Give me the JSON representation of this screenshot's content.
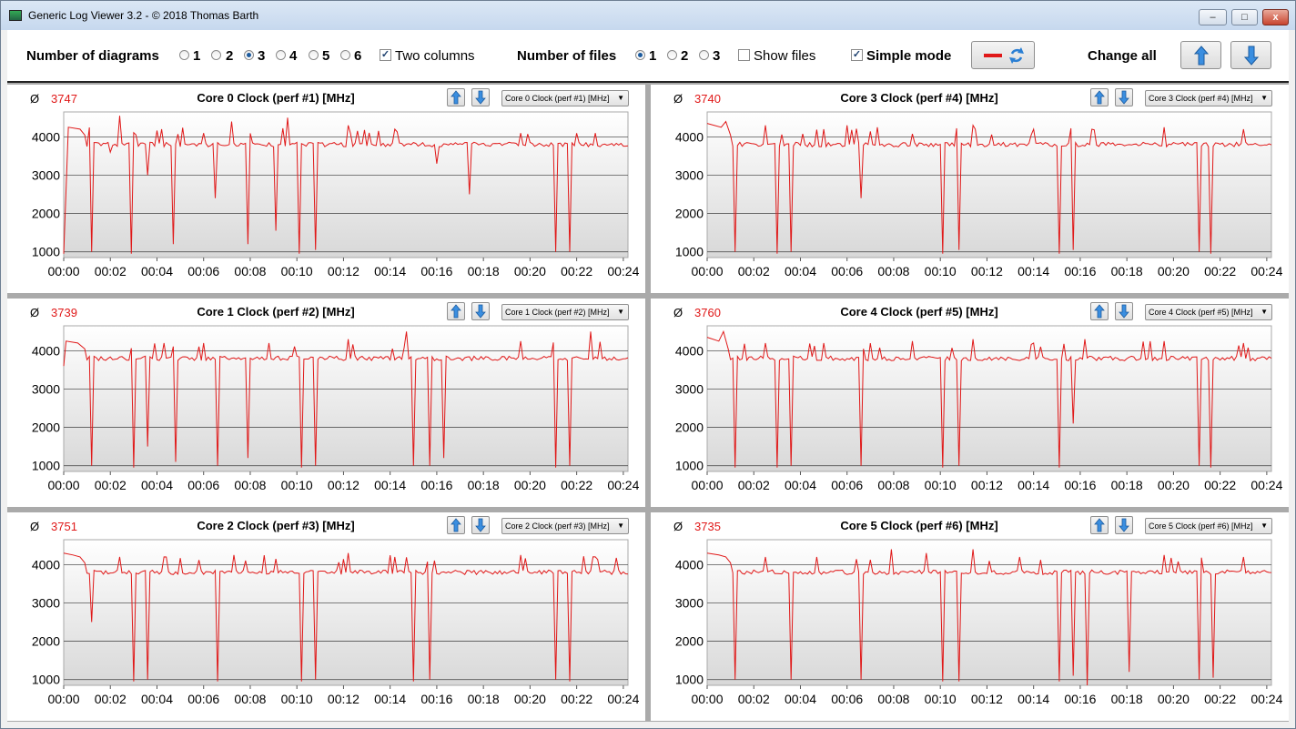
{
  "window": {
    "title": "Generic Log Viewer 3.2 - © 2018 Thomas Barth",
    "minimize": "–",
    "maximize": "□",
    "close": "x"
  },
  "toolbar": {
    "diagrams_label": "Number of diagrams",
    "diagram_options": [
      "1",
      "2",
      "3",
      "4",
      "5",
      "6"
    ],
    "diagram_selected": "3",
    "two_columns_label": "Two columns",
    "two_columns_checked": true,
    "files_label": "Number of files",
    "file_options": [
      "1",
      "2",
      "3"
    ],
    "file_selected": "1",
    "show_files_label": "Show files",
    "show_files_checked": false,
    "simple_mode_label": "Simple mode",
    "simple_mode_checked": true,
    "change_all_label": "Change all",
    "line_color": "#e01818",
    "check_mark": "✓"
  },
  "icons": {
    "refresh": "refresh-icon",
    "up": "arrow-up-icon",
    "down": "arrow-down-icon",
    "dropdown": "▼"
  },
  "panels": [
    {
      "avg_symbol": "Ø",
      "avg": "3747",
      "title": "Core 0 Clock (perf #1) [MHz]",
      "selector": "Core 0 Clock (perf #1) [MHz]"
    },
    {
      "avg_symbol": "Ø",
      "avg": "3740",
      "title": "Core 3 Clock (perf #4) [MHz]",
      "selector": "Core 3 Clock (perf #4) [MHz]"
    },
    {
      "avg_symbol": "Ø",
      "avg": "3739",
      "title": "Core 1 Clock (perf #2) [MHz]",
      "selector": "Core 1 Clock (perf #2) [MHz]"
    },
    {
      "avg_symbol": "Ø",
      "avg": "3760",
      "title": "Core 4 Clock (perf #5) [MHz]",
      "selector": "Core 4 Clock (perf #5) [MHz]"
    },
    {
      "avg_symbol": "Ø",
      "avg": "3751",
      "title": "Core 2 Clock (perf #3) [MHz]",
      "selector": "Core 2 Clock (perf #3) [MHz]"
    },
    {
      "avg_symbol": "Ø",
      "avg": "3735",
      "title": "Core 5 Clock (perf #6) [MHz]",
      "selector": "Core 5 Clock (perf #6) [MHz]"
    }
  ],
  "chart_data": [
    {
      "type": "line",
      "title": "Core 0 Clock (perf #1) [MHz]",
      "ylim": [
        850,
        4650
      ],
      "yticks": [
        1000,
        2000,
        3000,
        4000
      ],
      "xlim": [
        0,
        24.2
      ],
      "xticks": [
        "00:00",
        "00:02",
        "00:04",
        "00:06",
        "00:08",
        "00:10",
        "00:12",
        "00:14",
        "00:16",
        "00:18",
        "00:20",
        "00:22",
        "00:24"
      ],
      "grid": true,
      "color": "#e01818",
      "series": [
        {
          "baseline": 3800,
          "start": [
            [
              0,
              950
            ],
            [
              0.2,
              4250
            ],
            [
              0.7,
              4200
            ],
            [
              0.9,
              4050
            ]
          ],
          "spikes": [
            [
              1.2,
              1000
            ],
            [
              2.4,
              4550
            ],
            [
              2.9,
              950
            ],
            [
              3.6,
              3000
            ],
            [
              4.7,
              1200
            ],
            [
              6.5,
              2400
            ],
            [
              7.9,
              1200
            ],
            [
              9.1,
              1550
            ],
            [
              10.1,
              950
            ],
            [
              10.8,
              1050
            ],
            [
              17.4,
              2500
            ],
            [
              21.1,
              1000
            ],
            [
              21.7,
              1000
            ],
            [
              2.0,
              3600
            ],
            [
              4.2,
              4200
            ],
            [
              6.0,
              4100
            ],
            [
              7.2,
              4400
            ],
            [
              9.6,
              4500
            ],
            [
              12.2,
              4300
            ],
            [
              14.2,
              4200
            ],
            [
              16.0,
              3300
            ],
            [
              19.6,
              4100
            ],
            [
              22.8,
              4100
            ]
          ]
        }
      ]
    },
    {
      "type": "line",
      "title": "Core 3 Clock (perf #4) [MHz]",
      "ylim": [
        850,
        4650
      ],
      "yticks": [
        1000,
        2000,
        3000,
        4000
      ],
      "xlim": [
        0,
        24.2
      ],
      "xticks": [
        "00:00",
        "00:02",
        "00:04",
        "00:06",
        "00:08",
        "00:10",
        "00:12",
        "00:14",
        "00:16",
        "00:18",
        "00:20",
        "00:22",
        "00:24"
      ],
      "grid": true,
      "color": "#e01818",
      "series": [
        {
          "baseline": 3800,
          "start": [
            [
              0,
              4350
            ],
            [
              0.6,
              4250
            ],
            [
              0.8,
              4400
            ],
            [
              1.0,
              4050
            ]
          ],
          "spikes": [
            [
              1.2,
              1000
            ],
            [
              3.0,
              950
            ],
            [
              3.6,
              1000
            ],
            [
              6.6,
              2400
            ],
            [
              10.1,
              950
            ],
            [
              10.8,
              1050
            ],
            [
              15.1,
              950
            ],
            [
              15.7,
              1050
            ],
            [
              21.1,
              1000
            ],
            [
              21.6,
              950
            ],
            [
              2.5,
              4300
            ],
            [
              5.0,
              4200
            ],
            [
              6.0,
              4300
            ],
            [
              7.3,
              4250
            ],
            [
              11.4,
              4300
            ],
            [
              14.0,
              4200
            ],
            [
              19.6,
              4250
            ],
            [
              23.0,
              4200
            ]
          ]
        }
      ]
    },
    {
      "type": "line",
      "title": "Core 1 Clock (perf #2) [MHz]",
      "ylim": [
        850,
        4650
      ],
      "yticks": [
        1000,
        2000,
        3000,
        4000
      ],
      "xlim": [
        0,
        24.2
      ],
      "xticks": [
        "00:00",
        "00:02",
        "00:04",
        "00:06",
        "00:08",
        "00:10",
        "00:12",
        "00:14",
        "00:16",
        "00:18",
        "00:20",
        "00:22",
        "00:24"
      ],
      "grid": true,
      "color": "#e01818",
      "series": [
        {
          "baseline": 3800,
          "start": [
            [
              0,
              3600
            ],
            [
              0.1,
              4250
            ],
            [
              0.6,
              4200
            ],
            [
              0.9,
              4050
            ]
          ],
          "spikes": [
            [
              1.2,
              1000
            ],
            [
              3.0,
              950
            ],
            [
              3.6,
              1500
            ],
            [
              4.8,
              1100
            ],
            [
              6.6,
              1000
            ],
            [
              7.9,
              1200
            ],
            [
              10.2,
              950
            ],
            [
              10.8,
              1000
            ],
            [
              15.0,
              1000
            ],
            [
              15.7,
              1000
            ],
            [
              16.3,
              1200
            ],
            [
              21.1,
              950
            ],
            [
              21.7,
              1000
            ],
            [
              14.7,
              4500
            ],
            [
              22.6,
              4500
            ],
            [
              4.3,
              4200
            ],
            [
              6.0,
              4200
            ],
            [
              8.8,
              4200
            ],
            [
              12.2,
              4300
            ],
            [
              19.6,
              4250
            ]
          ]
        }
      ]
    },
    {
      "type": "line",
      "title": "Core 4 Clock (perf #5) [MHz]",
      "ylim": [
        850,
        4650
      ],
      "yticks": [
        1000,
        2000,
        3000,
        4000
      ],
      "xlim": [
        0,
        24.2
      ],
      "xticks": [
        "00:00",
        "00:02",
        "00:04",
        "00:06",
        "00:08",
        "00:10",
        "00:12",
        "00:14",
        "00:16",
        "00:18",
        "00:20",
        "00:22",
        "00:24"
      ],
      "grid": true,
      "color": "#e01818",
      "series": [
        {
          "baseline": 3800,
          "start": [
            [
              0,
              4350
            ],
            [
              0.5,
              4250
            ],
            [
              0.7,
              4500
            ],
            [
              0.9,
              4050
            ]
          ],
          "spikes": [
            [
              1.2,
              950
            ],
            [
              3.0,
              950
            ],
            [
              3.6,
              1000
            ],
            [
              6.6,
              1000
            ],
            [
              10.1,
              950
            ],
            [
              10.8,
              1000
            ],
            [
              15.1,
              950
            ],
            [
              15.7,
              2100
            ],
            [
              21.1,
              1000
            ],
            [
              21.6,
              950
            ],
            [
              16.2,
              4300
            ],
            [
              2.5,
              4200
            ],
            [
              5.0,
              4200
            ],
            [
              8.8,
              4250
            ],
            [
              11.4,
              4300
            ],
            [
              14.0,
              4200
            ],
            [
              19.6,
              4250
            ],
            [
              23.0,
              4200
            ]
          ]
        }
      ]
    },
    {
      "type": "line",
      "title": "Core 2 Clock (perf #3) [MHz]",
      "ylim": [
        850,
        4650
      ],
      "yticks": [
        1000,
        2000,
        3000,
        4000
      ],
      "xlim": [
        0,
        24.2
      ],
      "xticks": [
        "00:00",
        "00:02",
        "00:04",
        "00:06",
        "00:08",
        "00:10",
        "00:12",
        "00:14",
        "00:16",
        "00:18",
        "00:20",
        "00:22",
        "00:24"
      ],
      "grid": true,
      "color": "#e01818",
      "series": [
        {
          "baseline": 3800,
          "start": [
            [
              0,
              4300
            ],
            [
              0.4,
              4250
            ],
            [
              0.7,
              4200
            ],
            [
              0.9,
              4050
            ]
          ],
          "spikes": [
            [
              1.2,
              2500
            ],
            [
              3.0,
              950
            ],
            [
              3.6,
              1000
            ],
            [
              6.6,
              950
            ],
            [
              10.2,
              950
            ],
            [
              10.8,
              1000
            ],
            [
              15.0,
              950
            ],
            [
              15.7,
              1000
            ],
            [
              21.1,
              1000
            ],
            [
              21.7,
              950
            ],
            [
              2.4,
              4200
            ],
            [
              4.3,
              4200
            ],
            [
              7.3,
              4250
            ],
            [
              9.1,
              4150
            ],
            [
              12.2,
              4300
            ],
            [
              14.2,
              4200
            ],
            [
              19.6,
              4250
            ],
            [
              22.8,
              4200
            ]
          ]
        }
      ]
    },
    {
      "type": "line",
      "title": "Core 5 Clock (perf #6) [MHz]",
      "ylim": [
        850,
        4650
      ],
      "yticks": [
        1000,
        2000,
        3000,
        4000
      ],
      "xlim": [
        0,
        24.2
      ],
      "xticks": [
        "00:00",
        "00:02",
        "00:04",
        "00:06",
        "00:08",
        "00:10",
        "00:12",
        "00:14",
        "00:16",
        "00:18",
        "00:20",
        "00:22",
        "00:24"
      ],
      "grid": true,
      "color": "#e01818",
      "series": [
        {
          "baseline": 3800,
          "start": [
            [
              0,
              4300
            ],
            [
              0.5,
              4250
            ],
            [
              0.8,
              4200
            ],
            [
              1.0,
              4050
            ]
          ],
          "spikes": [
            [
              1.2,
              1000
            ],
            [
              3.6,
              1000
            ],
            [
              6.6,
              1000
            ],
            [
              10.1,
              950
            ],
            [
              10.8,
              950
            ],
            [
              15.1,
              950
            ],
            [
              15.7,
              1100
            ],
            [
              16.3,
              850
            ],
            [
              18.1,
              1200
            ],
            [
              21.1,
              1000
            ],
            [
              21.7,
              1050
            ],
            [
              7.9,
              4400
            ],
            [
              11.4,
              4400
            ],
            [
              2.5,
              4200
            ],
            [
              4.7,
              4200
            ],
            [
              9.4,
              4300
            ],
            [
              13.4,
              4200
            ],
            [
              19.6,
              4250
            ],
            [
              23.0,
              4200
            ]
          ]
        }
      ]
    }
  ]
}
